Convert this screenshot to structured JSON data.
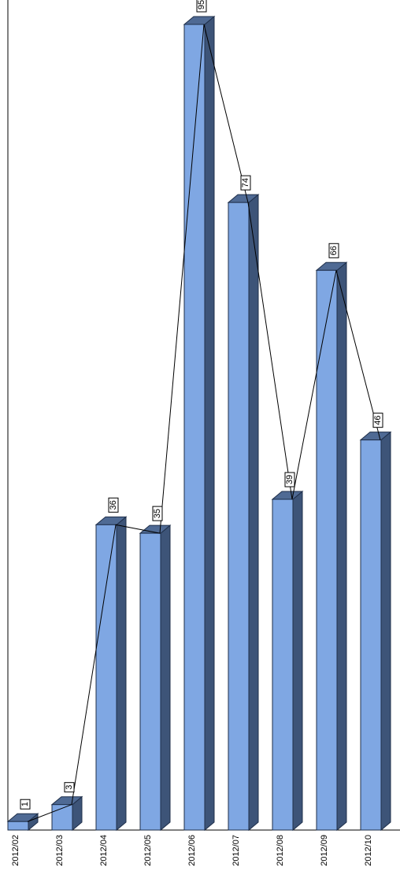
{
  "chart_data": {
    "type": "bar",
    "orientation": "rotated-90",
    "categories": [
      "2012/02",
      "2012/03",
      "2012/04",
      "2012/05",
      "2012/06",
      "2012/07",
      "2012/08",
      "2012/09",
      "2012/10"
    ],
    "series": [
      {
        "values": [
          1,
          3,
          36,
          35,
          95,
          74,
          39,
          66,
          46
        ]
      }
    ],
    "overlay_line": true,
    "ylim": [
      0,
      95
    ],
    "grid": false,
    "legend": "none",
    "colors": {
      "bar_front": "#7fa7e3",
      "bar_side": "#3d5478",
      "bar_top": "#4f6a94",
      "line": "#000000"
    }
  }
}
